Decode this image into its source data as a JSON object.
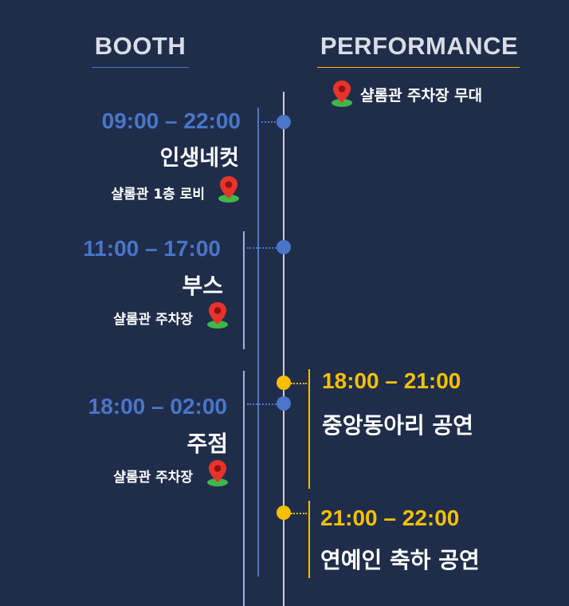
{
  "headers": {
    "booth": "BOOTH",
    "performance": "PERFORMANCE",
    "performance_location": "샬롬관 주차장 무대"
  },
  "booth": [
    {
      "time": "09:00 – 22:00",
      "title": "인생네컷",
      "location": "샬롬관 1층 로비"
    },
    {
      "time": "11:00 – 17:00",
      "title": "부스",
      "location": "샬롬관 주차장"
    },
    {
      "time": "18:00 – 02:00",
      "title": "주점",
      "location": "샬롬관 주차장"
    }
  ],
  "performance": [
    {
      "time": "18:00 – 21:00",
      "title": "중앙동아리 공연"
    },
    {
      "time": "21:00 – 22:00",
      "title": "연예인 축하 공연"
    }
  ],
  "colors": {
    "background": "#1f2d4a",
    "booth_accent": "#4a75c8",
    "performance_accent": "#f5c000",
    "axis": "#c9ced8",
    "pin_red": "#e8332b",
    "pin_green": "#3fb84a"
  },
  "icons": {
    "location": "map-pin-icon"
  }
}
